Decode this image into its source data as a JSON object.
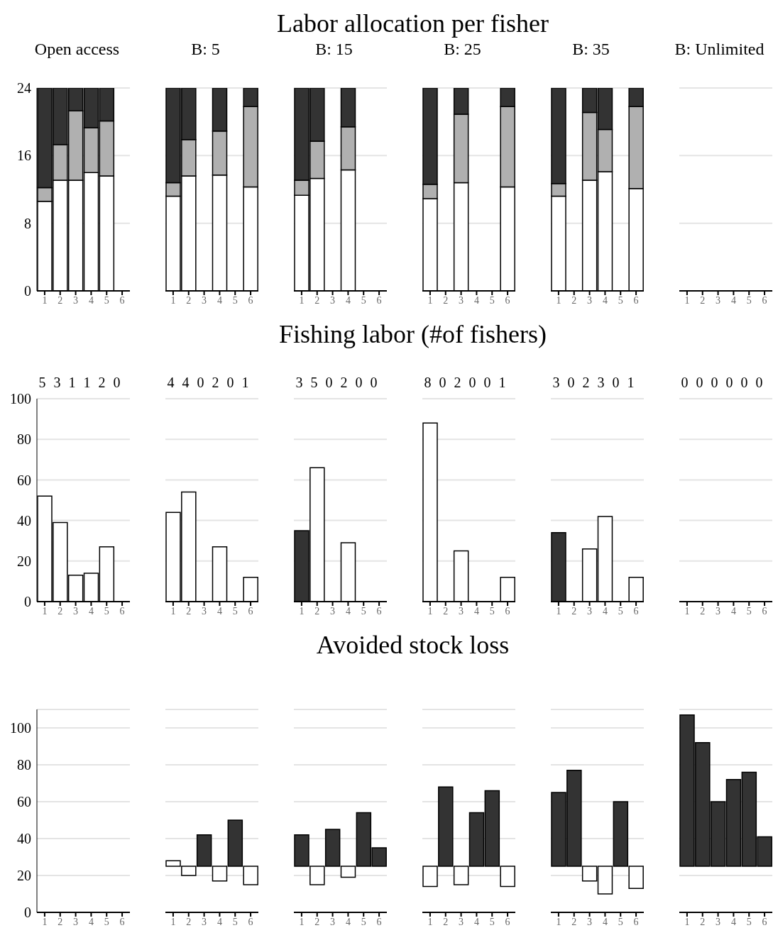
{
  "chart_data": [
    {
      "type": "bar",
      "subtitle": "Open access",
      "categories": [
        "1",
        "2",
        "3",
        "4",
        "5",
        "6"
      ],
      "stacked": true,
      "ylim": [
        0,
        24
      ],
      "yticks": [
        0,
        8,
        16,
        24
      ],
      "grid": "y",
      "series": [
        {
          "color": "#ffffff",
          "values": [
            10.6,
            13.1,
            13.1,
            14.0,
            13.6,
            null
          ]
        },
        {
          "color": "#b0b0b0",
          "values": [
            1.6,
            4.2,
            8.2,
            5.3,
            6.5,
            null
          ]
        },
        {
          "color": "#333333",
          "values": [
            11.8,
            6.7,
            2.7,
            4.7,
            3.9,
            null
          ]
        }
      ]
    },
    {
      "type": "bar",
      "subtitle": "B: 5",
      "categories": [
        "1",
        "2",
        "3",
        "4",
        "5",
        "6"
      ],
      "stacked": true,
      "ylim": [
        0,
        24
      ],
      "yticks": [
        0,
        8,
        16,
        24
      ],
      "grid": "y",
      "tick_labels": "x",
      "series": [
        {
          "color": "#ffffff",
          "values": [
            11.2,
            13.6,
            null,
            13.7,
            null,
            12.3
          ]
        },
        {
          "color": "#b0b0b0",
          "values": [
            1.6,
            4.3,
            null,
            5.2,
            null,
            9.5
          ]
        },
        {
          "color": "#333333",
          "values": [
            11.2,
            6.1,
            null,
            5.1,
            null,
            2.2
          ]
        }
      ]
    },
    {
      "type": "bar",
      "subtitle": "B: 15",
      "categories": [
        "1",
        "2",
        "3",
        "4",
        "5",
        "6"
      ],
      "stacked": true,
      "ylim": [
        0,
        24
      ],
      "yticks": [
        0,
        8,
        16,
        24
      ],
      "grid": "y",
      "tick_labels": "x",
      "series": [
        {
          "color": "#ffffff",
          "values": [
            11.3,
            13.3,
            null,
            14.3,
            null,
            null
          ]
        },
        {
          "color": "#b0b0b0",
          "values": [
            1.8,
            4.4,
            null,
            5.1,
            null,
            null
          ]
        },
        {
          "color": "#333333",
          "values": [
            10.9,
            6.3,
            null,
            4.6,
            null,
            null
          ]
        }
      ]
    },
    {
      "type": "bar",
      "title": "Labor allocation per fisher",
      "subtitle": "B: 25",
      "categories": [
        "1",
        "2",
        "3",
        "4",
        "5",
        "6"
      ],
      "stacked": true,
      "ylim": [
        0,
        24
      ],
      "yticks": [
        0,
        8,
        16,
        24
      ],
      "grid": "y",
      "tick_labels": "x",
      "series": [
        {
          "color": "#ffffff",
          "values": [
            10.9,
            null,
            12.8,
            null,
            null,
            12.3
          ]
        },
        {
          "color": "#b0b0b0",
          "values": [
            1.7,
            null,
            8.1,
            null,
            null,
            9.5
          ]
        },
        {
          "color": "#333333",
          "values": [
            11.4,
            null,
            3.1,
            null,
            null,
            2.2
          ]
        }
      ]
    },
    {
      "type": "bar",
      "subtitle": "B: 35",
      "categories": [
        "1",
        "2",
        "3",
        "4",
        "5",
        "6"
      ],
      "stacked": true,
      "ylim": [
        0,
        24
      ],
      "yticks": [
        0,
        8,
        16,
        24
      ],
      "grid": "y",
      "tick_labels": "x",
      "series": [
        {
          "color": "#ffffff",
          "values": [
            11.2,
            null,
            13.1,
            14.1,
            null,
            12.1
          ]
        },
        {
          "color": "#b0b0b0",
          "values": [
            1.5,
            null,
            8.0,
            5.0,
            null,
            9.7
          ]
        },
        {
          "color": "#333333",
          "values": [
            11.3,
            null,
            2.9,
            4.9,
            null,
            2.2
          ]
        }
      ]
    },
    {
      "type": "bar",
      "subtitle": "B: Unlimited",
      "categories": [
        "1",
        "2",
        "3",
        "4",
        "5",
        "6"
      ],
      "stacked": true,
      "ylim": [
        0,
        24
      ],
      "yticks": [
        0,
        8,
        16,
        24
      ],
      "grid": "y",
      "tick_labels": "x",
      "series": [
        {
          "color": "#ffffff",
          "values": [
            null,
            null,
            null,
            null,
            null,
            null
          ]
        },
        {
          "color": "#b0b0b0",
          "values": [
            null,
            null,
            null,
            null,
            null,
            null
          ]
        },
        {
          "color": "#333333",
          "values": [
            null,
            null,
            null,
            null,
            null,
            null
          ]
        }
      ]
    },
    {
      "type": "bar",
      "annotations": [
        "5 3 1 1 2 0"
      ],
      "categories": [
        "1",
        "2",
        "3",
        "4",
        "5",
        "6"
      ],
      "ylim": [
        0,
        100
      ],
      "yticks": [
        0,
        20,
        40,
        60,
        80,
        100
      ],
      "grid": "y",
      "values": [
        52,
        39,
        13,
        14,
        27,
        null
      ],
      "colors": [
        "#ffffff",
        "#ffffff",
        "#ffffff",
        "#ffffff",
        "#ffffff",
        "#ffffff"
      ]
    },
    {
      "type": "bar",
      "annotations": [
        "4 4 0 2 0 1"
      ],
      "categories": [
        "1",
        "2",
        "3",
        "4",
        "5",
        "6"
      ],
      "ylim": [
        0,
        100
      ],
      "yticks": [
        0,
        20,
        40,
        60,
        80,
        100
      ],
      "grid": "y",
      "tick_labels": "x",
      "values": [
        44,
        54,
        null,
        27,
        null,
        12
      ],
      "colors": [
        "#ffffff",
        "#ffffff",
        "#ffffff",
        "#ffffff",
        "#ffffff",
        "#ffffff"
      ]
    },
    {
      "type": "bar",
      "annotations": [
        "3 5 0 2 0 0"
      ],
      "categories": [
        "1",
        "2",
        "3",
        "4",
        "5",
        "6"
      ],
      "ylim": [
        0,
        100
      ],
      "yticks": [
        0,
        20,
        40,
        60,
        80,
        100
      ],
      "grid": "y",
      "tick_labels": "x",
      "values": [
        35,
        66,
        null,
        29,
        null,
        null
      ],
      "colors": [
        "#333333",
        "#ffffff",
        "#ffffff",
        "#ffffff",
        "#ffffff",
        "#ffffff"
      ]
    },
    {
      "type": "bar",
      "title": "Fishing labor (#of fishers)",
      "annotations": [
        "8 0 2 0 0 1"
      ],
      "categories": [
        "1",
        "2",
        "3",
        "4",
        "5",
        "6"
      ],
      "ylim": [
        0,
        100
      ],
      "yticks": [
        0,
        20,
        40,
        60,
        80,
        100
      ],
      "grid": "y",
      "tick_labels": "x",
      "values": [
        88,
        null,
        25,
        null,
        null,
        12
      ],
      "colors": [
        "#ffffff",
        "#ffffff",
        "#ffffff",
        "#ffffff",
        "#ffffff",
        "#ffffff"
      ]
    },
    {
      "type": "bar",
      "annotations": [
        "3 0 2 3 0 1"
      ],
      "categories": [
        "1",
        "2",
        "3",
        "4",
        "5",
        "6"
      ],
      "ylim": [
        0,
        100
      ],
      "yticks": [
        0,
        20,
        40,
        60,
        80,
        100
      ],
      "grid": "y",
      "tick_labels": "x",
      "values": [
        34,
        null,
        26,
        42,
        null,
        12
      ],
      "colors": [
        "#333333",
        "#ffffff",
        "#ffffff",
        "#ffffff",
        "#ffffff",
        "#ffffff"
      ]
    },
    {
      "type": "bar",
      "annotations": [
        "0 0 0 0 0 0"
      ],
      "categories": [
        "1",
        "2",
        "3",
        "4",
        "5",
        "6"
      ],
      "ylim": [
        0,
        100
      ],
      "yticks": [
        0,
        20,
        40,
        60,
        80,
        100
      ],
      "grid": "y",
      "tick_labels": "x",
      "values": [
        null,
        null,
        null,
        null,
        null,
        null
      ],
      "colors": [
        "#ffffff",
        "#ffffff",
        "#ffffff",
        "#ffffff",
        "#ffffff",
        "#ffffff"
      ]
    },
    {
      "type": "bar",
      "categories": [
        "1",
        "2",
        "3",
        "4",
        "5",
        "6"
      ],
      "ylim": [
        0,
        110
      ],
      "yticks": [
        0,
        20,
        40,
        60,
        80,
        100
      ],
      "grid": "y",
      "values": [
        null,
        null,
        null,
        null,
        null,
        null
      ],
      "colors": [
        "#333333",
        "#333333",
        "#333333",
        "#333333",
        "#333333",
        "#333333"
      ]
    },
    {
      "type": "bar",
      "categories": [
        "1",
        "2",
        "3",
        "4",
        "5",
        "6"
      ],
      "ylim": [
        0,
        110
      ],
      "yticks": [
        0,
        20,
        40,
        60,
        80,
        100
      ],
      "grid": "y",
      "tick_labels": "x",
      "values": [
        3,
        -5,
        17,
        -8,
        25,
        -10
      ],
      "base": [
        25,
        25,
        25,
        25,
        25,
        25
      ],
      "colors": [
        "#ffffff",
        "#ffffff",
        "#333333",
        "#ffffff",
        "#333333",
        "#ffffff"
      ]
    },
    {
      "type": "bar",
      "categories": [
        "1",
        "2",
        "3",
        "4",
        "5",
        "6"
      ],
      "ylim": [
        0,
        110
      ],
      "yticks": [
        0,
        20,
        40,
        60,
        80,
        100
      ],
      "grid": "y",
      "tick_labels": "x",
      "values": [
        17,
        -10,
        20,
        -6,
        29,
        10
      ],
      "base": [
        25,
        25,
        25,
        25,
        25,
        25
      ],
      "colors": [
        "#333333",
        "#ffffff",
        "#333333",
        "#ffffff",
        "#333333",
        "#333333"
      ]
    },
    {
      "type": "bar",
      "title": "Avoided stock loss",
      "categories": [
        "1",
        "2",
        "3",
        "4",
        "5",
        "6"
      ],
      "ylim": [
        0,
        110
      ],
      "yticks": [
        0,
        20,
        40,
        60,
        80,
        100
      ],
      "grid": "y",
      "tick_labels": "x",
      "values": [
        -11,
        43,
        -10,
        29,
        41,
        -11
      ],
      "base": [
        25,
        25,
        25,
        25,
        25,
        25
      ],
      "colors": [
        "#ffffff",
        "#333333",
        "#ffffff",
        "#333333",
        "#333333",
        "#ffffff"
      ]
    },
    {
      "type": "bar",
      "categories": [
        "1",
        "2",
        "3",
        "4",
        "5",
        "6"
      ],
      "ylim": [
        0,
        110
      ],
      "yticks": [
        0,
        20,
        40,
        60,
        80,
        100
      ],
      "grid": "y",
      "tick_labels": "x",
      "values": [
        40,
        52,
        -8,
        -15,
        35,
        -12
      ],
      "base": [
        25,
        25,
        25,
        25,
        25,
        25
      ],
      "colors": [
        "#333333",
        "#333333",
        "#ffffff",
        "#ffffff",
        "#333333",
        "#ffffff"
      ]
    },
    {
      "type": "bar",
      "categories": [
        "1",
        "2",
        "3",
        "4",
        "5",
        "6"
      ],
      "ylim": [
        0,
        110
      ],
      "yticks": [
        0,
        20,
        40,
        60,
        80,
        100
      ],
      "grid": "y",
      "tick_labels": "x",
      "values": [
        82,
        67,
        35,
        47,
        51,
        16
      ],
      "base": [
        25,
        25,
        25,
        25,
        25,
        25
      ],
      "colors": [
        "#333333",
        "#333333",
        "#333333",
        "#333333",
        "#333333",
        "#333333"
      ]
    }
  ]
}
